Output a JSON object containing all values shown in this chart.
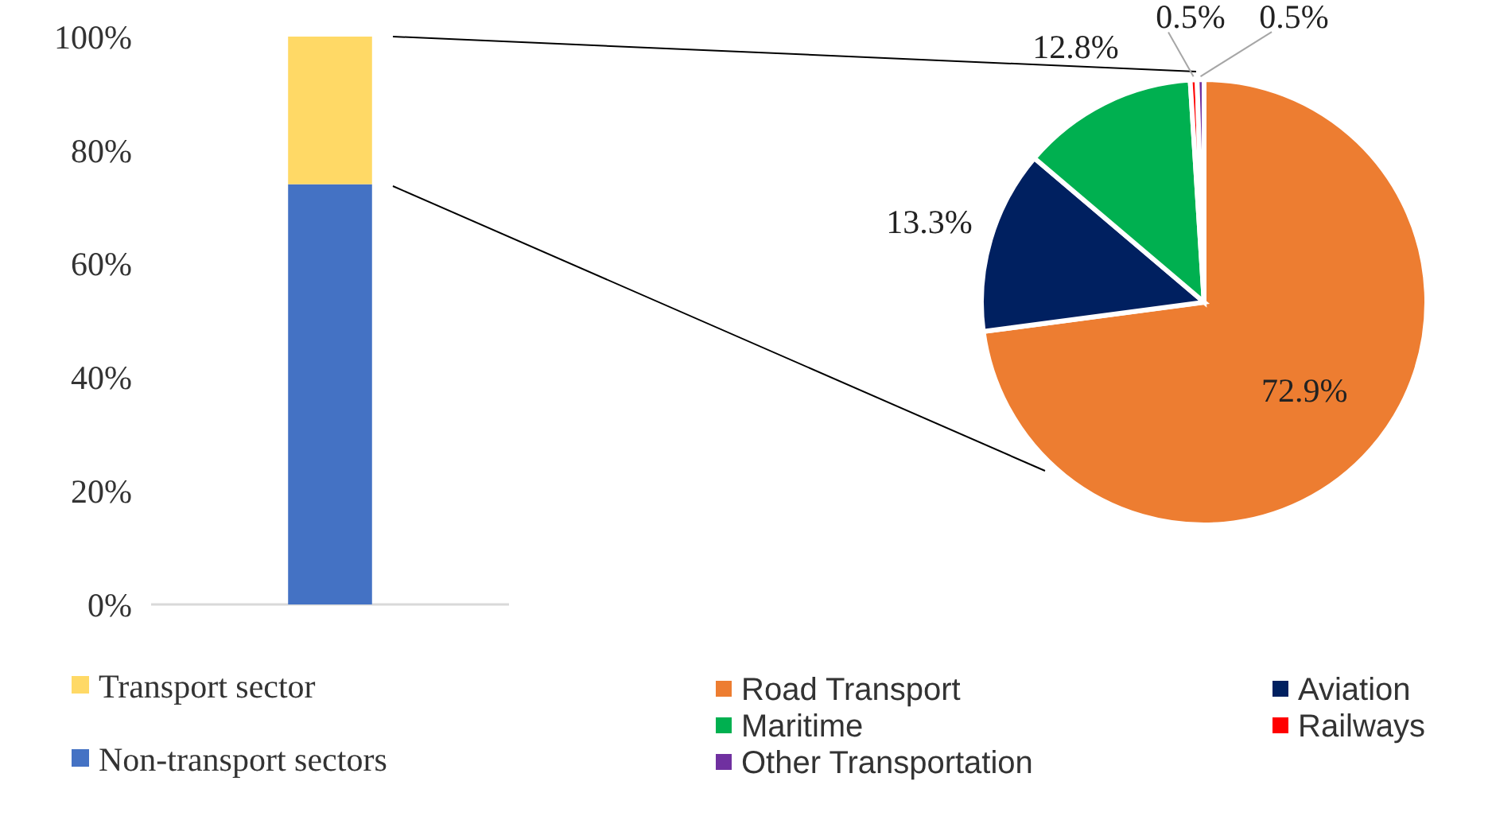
{
  "chart_data": [
    {
      "type": "bar",
      "stacked": true,
      "categories": [
        null
      ],
      "series": [
        {
          "name": "Non-transport sectors",
          "color": "#4472c4",
          "values": [
            74
          ]
        },
        {
          "name": "Transport sector",
          "color": "#ffd966",
          "values": [
            26
          ]
        }
      ],
      "ylim": [
        0,
        100
      ],
      "yticks": [
        {
          "value": 0,
          "label": "0%"
        },
        {
          "value": 20,
          "label": "20%"
        },
        {
          "value": 40,
          "label": "40%"
        },
        {
          "value": 60,
          "label": "60%"
        },
        {
          "value": 80,
          "label": "80%"
        },
        {
          "value": 100,
          "label": "100%"
        }
      ],
      "grid": false,
      "legend": "bottom"
    },
    {
      "type": "pie",
      "categories": [
        "Road Transport",
        "Aviation",
        "Maritime",
        "Railways",
        "Other Transportation"
      ],
      "values": [
        72.9,
        13.3,
        12.8,
        0.5,
        0.5
      ],
      "colors": [
        "#ed7d31",
        "#002060",
        "#00b050",
        "#ff0000",
        "#7030a0"
      ],
      "value_labels": [
        "72.9%",
        "13.3%",
        "12.8%",
        "0.5%",
        "0.5%"
      ],
      "legend": "bottom"
    }
  ]
}
